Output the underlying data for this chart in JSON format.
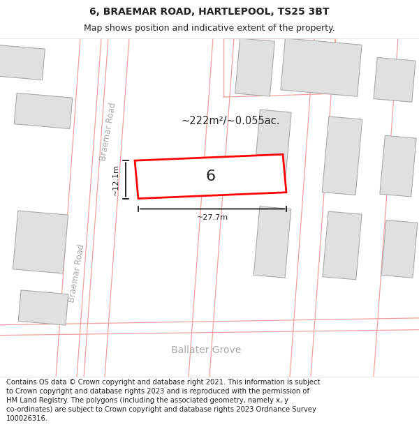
{
  "title_line1": "6, BRAEMAR ROAD, HARTLEPOOL, TS25 3BT",
  "title_line2": "Map shows position and indicative extent of the property.",
  "footer_text": "Contains OS data © Crown copyright and database right 2021. This information is subject to Crown copyright and database rights 2023 and is reproduced with the permission of HM Land Registry. The polygons (including the associated geometry, namely x, y co-ordinates) are subject to Crown copyright and database rights 2023 Ordnance Survey 100026316.",
  "area_label": "~222m²/~0.055ac.",
  "width_label": "~27.7m",
  "height_label": "~12.1m",
  "plot_number": "6",
  "bg_color": "#ffffff",
  "map_bg": "#f0f0f0",
  "building_fill": "#e0e0e0",
  "building_edge": "#aaaaaa",
  "road_line_color": "#f0a0a0",
  "highlight_color": "#ff0000",
  "text_color": "#222222",
  "road_label_color": "#aaaaaa",
  "title_fontsize": 10,
  "subtitle_fontsize": 9,
  "footer_fontsize": 7.2,
  "map_xlim": [
    0,
    600
  ],
  "map_ylim": [
    0,
    490
  ]
}
